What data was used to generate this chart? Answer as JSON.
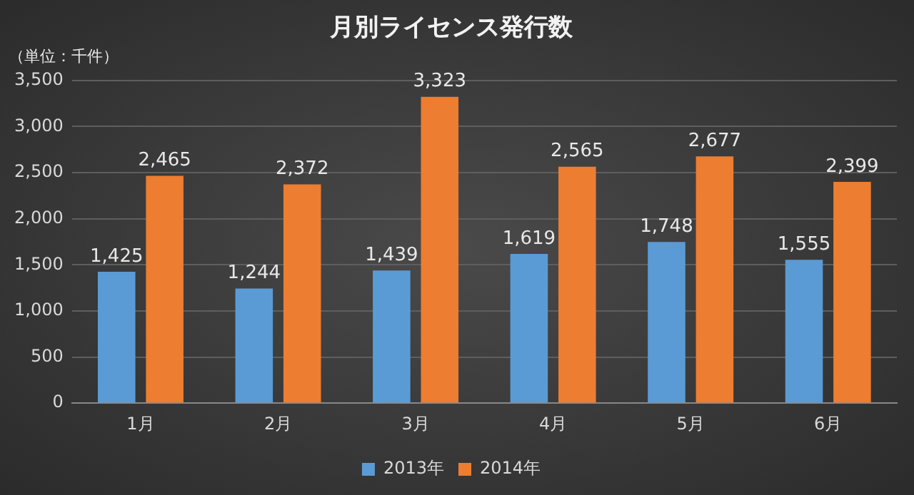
{
  "chart_data": {
    "type": "bar",
    "title": "月別ライセンス発行数",
    "annotations": [
      "（単位：千件）"
    ],
    "categories": [
      "1月",
      "2月",
      "3月",
      "4月",
      "5月",
      "6月"
    ],
    "series": [
      {
        "name": "2013年",
        "color": "#5b9bd5",
        "values": [
          1425,
          1244,
          1439,
          1619,
          1748,
          1555
        ],
        "value_labels": [
          "1,425",
          "1,244",
          "1,439",
          "1,619",
          "1,748",
          "1,555"
        ]
      },
      {
        "name": "2014年",
        "color": "#ed7d31",
        "values": [
          2465,
          2372,
          3323,
          2565,
          2677,
          2399
        ],
        "value_labels": [
          "2,465",
          "2,372",
          "3,323",
          "2,565",
          "2,677",
          "2,399"
        ]
      }
    ],
    "ylim": [
      0,
      3500
    ],
    "yticks": [
      0,
      500,
      {
        "value": 1000,
        "label": "1,000"
      },
      {
        "value": 1500,
        "label": "1,500"
      },
      {
        "value": 2000,
        "label": "2,000"
      },
      {
        "value": 2500,
        "label": "2,500"
      },
      {
        "value": 3000,
        "label": "3,000"
      },
      {
        "value": 3500,
        "label": "3,500"
      }
    ],
    "grid": "y",
    "legend": "bottom"
  }
}
